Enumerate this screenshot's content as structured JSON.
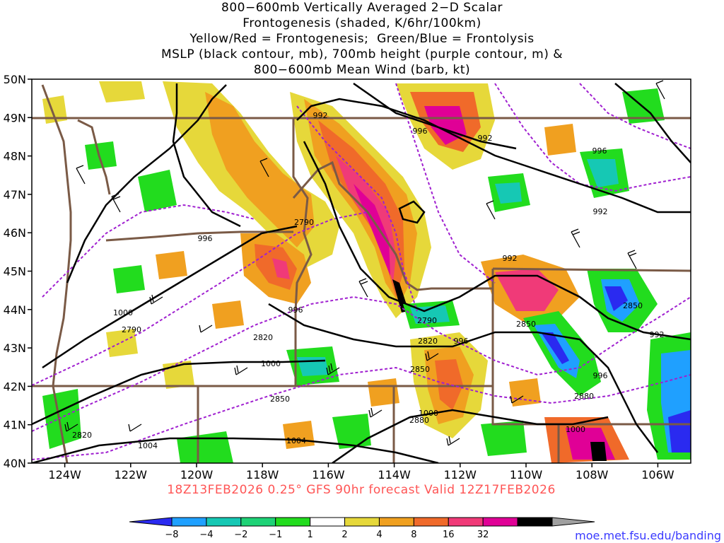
{
  "title_lines": [
    "800−600mb Vertically Averaged 2−D Scalar",
    "Frontogenesis (shaded, K/6hr/100km)",
    "Yellow/Red = Frontogenesis;  Green/Blue = Frontolysis",
    "MSLP (black contour, mb), 700mb height (purple contour, m) &",
    "800−600mb Mean Wind (barb, kt)"
  ],
  "valid_text": "18Z13FEB2026 0.25° GFS 90hr forecast Valid 12Z17FEB2026",
  "credit": "moe.met.fsu.edu/banding",
  "lat_labels": [
    "50N",
    "49N",
    "48N",
    "47N",
    "46N",
    "45N",
    "44N",
    "43N",
    "42N",
    "41N",
    "40N"
  ],
  "lon_labels": [
    "124W",
    "122W",
    "120W",
    "118W",
    "116W",
    "114W",
    "112W",
    "110W",
    "108W",
    "106W"
  ],
  "colorbar": {
    "bins": [
      "#2a2af0",
      "#1fa0ff",
      "#16c8b4",
      "#1ed276",
      "#22dc1e",
      "#ffffff",
      "#e6d83a",
      "#f0a020",
      "#f06a2a",
      "#f03a78",
      "#e00096",
      "#000000",
      "#a0a0a0"
    ],
    "labels": [
      "−8",
      "−4",
      "−2",
      "−1",
      "1",
      "2",
      "4",
      "8",
      "16",
      "32"
    ]
  },
  "colors": {
    "mslp": "#000000",
    "height700": "#a020d0",
    "borders": "#7a5a46",
    "valid": "#ff5555"
  },
  "contour_labels": {
    "mslp": [
      "992",
      "996",
      "992",
      "996",
      "992",
      "996",
      "1000",
      "1000",
      "996",
      "992",
      "996",
      "1000",
      "1004",
      "1004",
      "1000",
      "992",
      "996"
    ],
    "height700": [
      "2790",
      "2790",
      "2820",
      "2790",
      "2820",
      "2850",
      "2850",
      "2850",
      "2880",
      "2880",
      "2850",
      "2820"
    ]
  }
}
